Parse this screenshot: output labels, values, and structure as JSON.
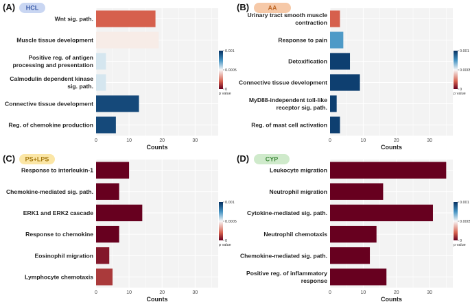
{
  "figure": {
    "colorbar": {
      "title": "p value",
      "ticks": [
        "0.001",
        "0.0005",
        "0"
      ],
      "range": [
        0,
        0.001
      ]
    },
    "colors": {
      "low": "#67001f",
      "mid": "#f7f7f7",
      "high": "#053061",
      "panel_bg": "#f3f3f3",
      "grid": "#ffffff"
    }
  },
  "chart_data": [
    {
      "id": "A",
      "panel_label": "(A)",
      "badge": "HCL",
      "badge_bg": "#c9d6f2",
      "badge_fg": "#3a5aa8",
      "type": "bar",
      "orientation": "horizontal",
      "xlabel": "Counts",
      "xlim": [
        0,
        37
      ],
      "xticks": [
        0,
        10,
        20,
        30
      ],
      "categories": [
        {
          "label": [
            "Wnt sig. path."
          ],
          "value": 18,
          "pvalue": 0.0002
        },
        {
          "label": [
            "Muscle tissue development"
          ],
          "value": 19,
          "pvalue": 0.00048
        },
        {
          "label": [
            "Positive reg. of antigen",
            "processing and presentation"
          ],
          "value": 3,
          "pvalue": 0.00055
        },
        {
          "label": [
            "Calmodulin dependent kinase",
            "sig. path."
          ],
          "value": 3,
          "pvalue": 0.00055
        },
        {
          "label": [
            "Connective tissue development"
          ],
          "value": 13,
          "pvalue": 0.00095
        },
        {
          "label": [
            "Reg. of chemokine production"
          ],
          "value": 6,
          "pvalue": 0.00095
        }
      ]
    },
    {
      "id": "B",
      "panel_label": "(B)",
      "badge": "AA",
      "badge_bg": "#f6c9a8",
      "badge_fg": "#c06a2a",
      "type": "bar",
      "orientation": "horizontal",
      "xlabel": "Counts",
      "xlim": [
        0,
        37
      ],
      "xticks": [
        0,
        10,
        20,
        30
      ],
      "categories": [
        {
          "label": [
            "Urinary tract smooth muscle",
            "contraction"
          ],
          "value": 3,
          "pvalue": 0.0002
        },
        {
          "label": [
            "Response to pain"
          ],
          "value": 4,
          "pvalue": 0.00078
        },
        {
          "label": [
            "Detoxification"
          ],
          "value": 6,
          "pvalue": 0.00097
        },
        {
          "label": [
            "Connective tissue development"
          ],
          "value": 9,
          "pvalue": 0.00097
        },
        {
          "label": [
            "MyD88-independent toll-like",
            "receptor sig. path."
          ],
          "value": 2,
          "pvalue": 0.00097
        },
        {
          "label": [
            "Reg. of mast cell activation"
          ],
          "value": 3,
          "pvalue": 0.00097
        }
      ]
    },
    {
      "id": "C",
      "panel_label": "(C)",
      "badge": "PS+LPS",
      "badge_bg": "#fbe6a6",
      "badge_fg": "#a77a10",
      "type": "bar",
      "orientation": "horizontal",
      "xlabel": "Counts",
      "xlim": [
        0,
        37
      ],
      "xticks": [
        0,
        10,
        20,
        30
      ],
      "categories": [
        {
          "label": [
            "Response to interleukin-1"
          ],
          "value": 10,
          "pvalue": 0.0
        },
        {
          "label": [
            "Chemokine-mediated sig. path."
          ],
          "value": 7,
          "pvalue": 0.0
        },
        {
          "label": [
            "ERK1 and ERK2 cascade"
          ],
          "value": 14,
          "pvalue": 0.0
        },
        {
          "label": [
            "Response to chemokine"
          ],
          "value": 7,
          "pvalue": 0.0
        },
        {
          "label": [
            "Eosinophil migration"
          ],
          "value": 4,
          "pvalue": 5e-05
        },
        {
          "label": [
            "Lymphocyte chemotaxis"
          ],
          "value": 5,
          "pvalue": 0.00012
        }
      ]
    },
    {
      "id": "D",
      "panel_label": "(D)",
      "badge": "CYP",
      "badge_bg": "#cfeacb",
      "badge_fg": "#3f8a3a",
      "type": "bar",
      "orientation": "horizontal",
      "xlabel": "Counts",
      "xlim": [
        0,
        37
      ],
      "xticks": [
        0,
        10,
        20,
        30
      ],
      "categories": [
        {
          "label": [
            "Leukocyte migration"
          ],
          "value": 35,
          "pvalue": 0.0
        },
        {
          "label": [
            "Neutrophil migration"
          ],
          "value": 16,
          "pvalue": 0.0
        },
        {
          "label": [
            "Cytokine-mediated sig. path."
          ],
          "value": 31,
          "pvalue": 0.0
        },
        {
          "label": [
            "Neutrophil chemotaxis"
          ],
          "value": 14,
          "pvalue": 0.0
        },
        {
          "label": [
            "Chemokine-mediated sig. path."
          ],
          "value": 12,
          "pvalue": 0.0
        },
        {
          "label": [
            "Positive reg. of inflammatory",
            "response"
          ],
          "value": 17,
          "pvalue": 0.0
        }
      ]
    }
  ]
}
